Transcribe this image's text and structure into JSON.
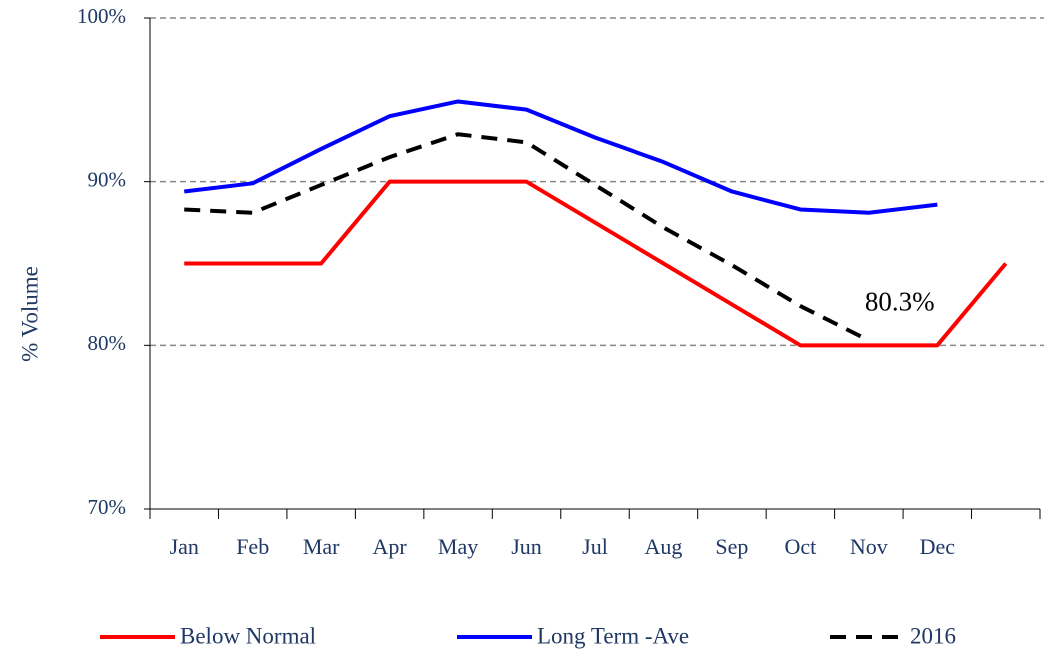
{
  "chart_data": {
    "type": "line",
    "y_label": "% Volume",
    "categories": [
      "Jan",
      "Feb",
      "Mar",
      "Apr",
      "May",
      "Jun",
      "Jul",
      "Aug",
      "Sep",
      "Oct",
      "Nov",
      "Dec",
      null
    ],
    "series": [
      {
        "name": "Below Normal",
        "color": "#ff0000",
        "dash": false,
        "values": [
          85,
          85,
          85,
          90,
          90,
          90,
          87.5,
          85,
          82.5,
          80,
          80,
          80,
          85
        ]
      },
      {
        "name": "Long Term -Ave",
        "color": "#0000ff",
        "dash": false,
        "values": [
          89.4,
          89.9,
          92,
          94,
          94.9,
          94.4,
          92.7,
          91.2,
          89.4,
          88.3,
          88.1,
          88.6,
          null
        ]
      },
      {
        "name": "2016",
        "color": "#000000",
        "dash": true,
        "values": [
          88.3,
          88.1,
          89.8,
          91.5,
          92.9,
          92.4,
          89.8,
          87.2,
          84.9,
          82.4,
          80.3,
          null,
          null
        ],
        "value_labels": [
          null,
          null,
          null,
          null,
          null,
          null,
          null,
          null,
          null,
          null,
          "80.3%",
          null,
          null
        ]
      }
    ],
    "ylim": [
      70,
      100
    ],
    "yticks": [
      {
        "value": 70,
        "label": "70%"
      },
      {
        "value": 80,
        "label": "80%"
      },
      {
        "value": 90,
        "label": "90%"
      },
      {
        "value": 100,
        "label": "100%"
      }
    ],
    "grid": true,
    "legend": "bottom"
  }
}
